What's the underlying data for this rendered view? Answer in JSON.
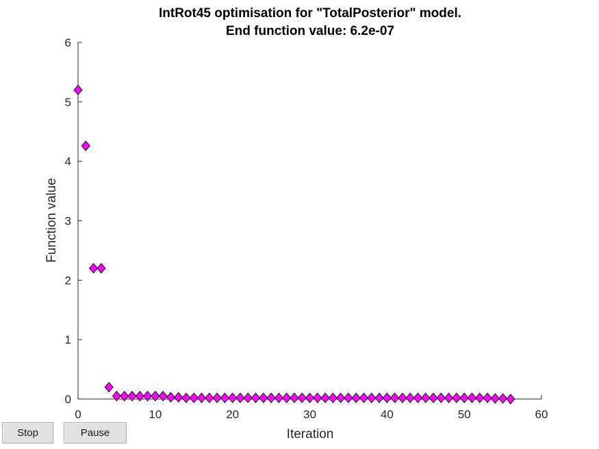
{
  "figure": {
    "title_line1": "IntRot45 optimisation for \"TotalPosterior\" model.",
    "title_line2": "End function value: 6.2e-07"
  },
  "buttons": {
    "stop_label": "Stop",
    "pause_label": "Pause"
  },
  "chart_data": {
    "type": "scatter",
    "title": "IntRot45 optimisation for \"TotalPosterior\" model. End function value: 6.2e-07",
    "xlabel": "Iteration",
    "ylabel": "Function value",
    "xlim": [
      0,
      60
    ],
    "ylim": [
      0,
      6
    ],
    "xticks": [
      0,
      10,
      20,
      30,
      40,
      50,
      60
    ],
    "yticks": [
      0,
      1,
      2,
      3,
      4,
      5,
      6
    ],
    "grid": false,
    "marker": "diamond",
    "marker_color": "#ff00ff",
    "marker_edge_color": "#000000",
    "x": [
      0,
      1,
      2,
      3,
      4,
      5,
      6,
      7,
      8,
      9,
      10,
      11,
      12,
      13,
      14,
      15,
      16,
      17,
      18,
      19,
      20,
      21,
      22,
      23,
      24,
      25,
      26,
      27,
      28,
      29,
      30,
      31,
      32,
      33,
      34,
      35,
      36,
      37,
      38,
      39,
      40,
      41,
      42,
      43,
      44,
      45,
      46,
      47,
      48,
      49,
      50,
      51,
      52,
      53,
      54,
      55,
      56
    ],
    "y": [
      5.2,
      4.26,
      2.2,
      2.2,
      0.2,
      0.05,
      0.05,
      0.05,
      0.05,
      0.05,
      0.05,
      0.05,
      0.03,
      0.03,
      0.02,
      0.02,
      0.02,
      0.02,
      0.02,
      0.02,
      0.02,
      0.02,
      0.02,
      0.02,
      0.02,
      0.02,
      0.02,
      0.02,
      0.02,
      0.02,
      0.02,
      0.02,
      0.02,
      0.02,
      0.02,
      0.02,
      0.02,
      0.02,
      0.02,
      0.02,
      0.02,
      0.02,
      0.02,
      0.02,
      0.02,
      0.02,
      0.02,
      0.02,
      0.02,
      0.02,
      0.02,
      0.02,
      0.02,
      0.02,
      0.01,
      0.01,
      0.0
    ]
  }
}
